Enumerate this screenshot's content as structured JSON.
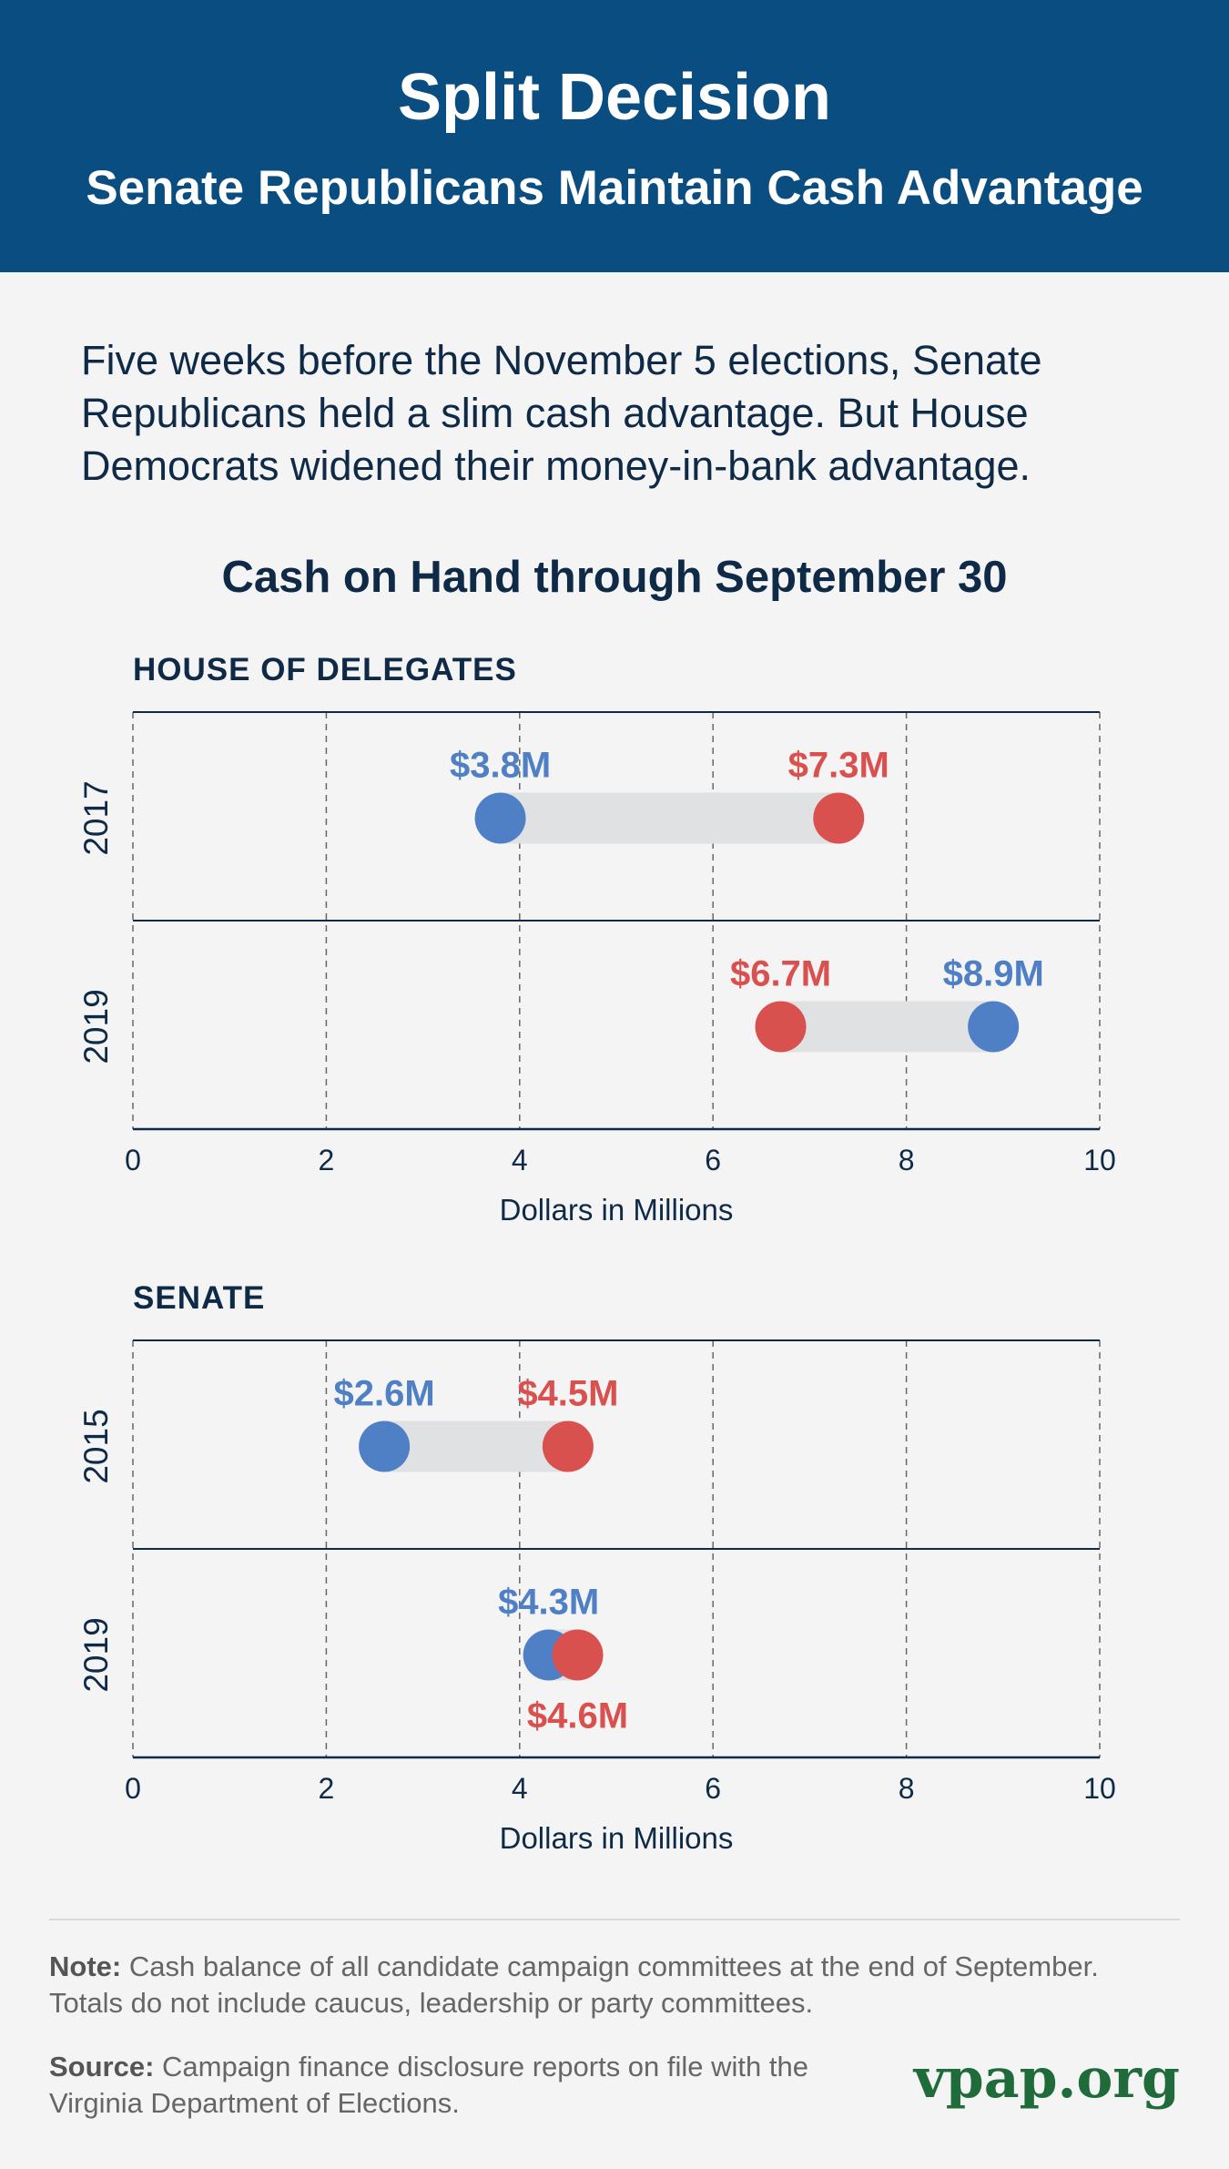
{
  "header": {
    "title": "Split Decision",
    "subtitle": "Senate Republicans Maintain Cash Advantage"
  },
  "intro": "Five weeks before the November 5 elections, Senate Republicans held a slim cash advantage. But House Democrats widened their money-in-bank advantage.",
  "chart_title": "Cash on Hand through September 30",
  "colors": {
    "democrat": "#4f7fc4",
    "republican": "#d9514e",
    "bar": "#dfe1e3",
    "axis": "#0e2a47",
    "grid": "#666666"
  },
  "chart_data": [
    {
      "type": "dumbbell",
      "section": "HOUSE OF DELEGATES",
      "xlabel": "Dollars in Millions",
      "xlim": [
        0,
        10
      ],
      "ticks": [
        "0",
        "2",
        "4",
        "6",
        "8",
        "10"
      ],
      "rows": [
        {
          "year": "2017",
          "democrat": 3.8,
          "democrat_label": "$3.8M",
          "republican": 7.3,
          "republican_label": "$7.3M"
        },
        {
          "year": "2019",
          "democrat": 8.9,
          "democrat_label": "$8.9M",
          "republican": 6.7,
          "republican_label": "$6.7M"
        }
      ]
    },
    {
      "type": "dumbbell",
      "section": "SENATE",
      "xlabel": "Dollars in Millions",
      "xlim": [
        0,
        10
      ],
      "ticks": [
        "0",
        "2",
        "4",
        "6",
        "8",
        "10"
      ],
      "rows": [
        {
          "year": "2015",
          "democrat": 2.6,
          "democrat_label": "$2.6M",
          "republican": 4.5,
          "republican_label": "$4.5M"
        },
        {
          "year": "2019",
          "democrat": 4.3,
          "democrat_label": "$4.3M",
          "republican": 4.6,
          "republican_label": "$4.6M"
        }
      ]
    }
  ],
  "footer": {
    "note_label": "Note:",
    "note_text": "Cash balance of all candidate campaign committees at the end of September. Totals do not include caucus, leadership or party committees.",
    "source_label": "Source:",
    "source_text": "Campaign finance disclosure reports on file with the Virginia Department of Elections.",
    "brand": "vpap.org"
  }
}
